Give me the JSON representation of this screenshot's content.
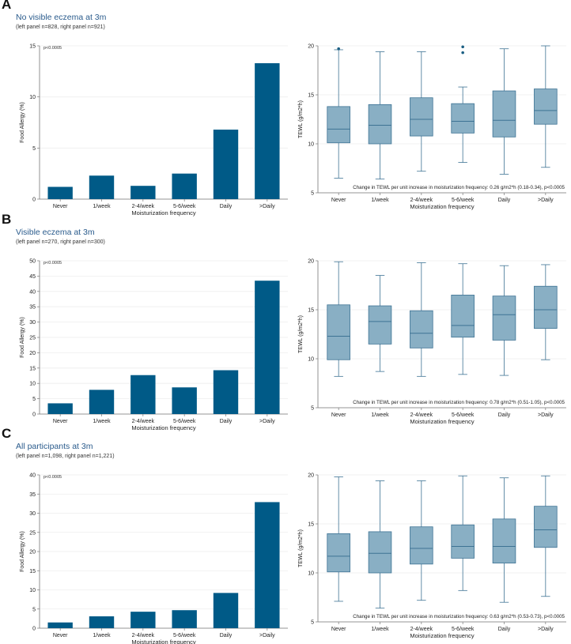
{
  "chart_data": [
    {
      "id": "A",
      "title": "No visible eczema at 3m",
      "subtitle": "(left panel n=828, right panel n=921)",
      "categories": [
        "Never",
        "1/week",
        "2-4/week",
        "5-6/week",
        "Daily",
        ">Daily"
      ],
      "xlabel": "Moisturization frequency",
      "bar": {
        "type": "bar",
        "ylabel": "Food Allergy (%)",
        "ylim": [
          0,
          15
        ],
        "yticks": [
          0,
          5,
          10,
          15
        ],
        "values": [
          1.2,
          2.3,
          1.3,
          2.5,
          6.8,
          13.3
        ],
        "pvalue": "p<0.0005",
        "color": "#005a87"
      },
      "box": {
        "type": "box",
        "ylabel": "TEWL (g/m2*h)",
        "ylim": [
          5,
          20
        ],
        "yticks": [
          5,
          10,
          15,
          20
        ],
        "boxes": [
          {
            "min": 6.5,
            "q1": 10.1,
            "median": 11.5,
            "q3": 13.8,
            "max": 19.6,
            "outliers": [
              19.7
            ]
          },
          {
            "min": 6.4,
            "q1": 10.0,
            "median": 11.9,
            "q3": 14.0,
            "max": 19.4,
            "outliers": []
          },
          {
            "min": 7.2,
            "q1": 10.8,
            "median": 12.5,
            "q3": 14.7,
            "max": 19.4,
            "outliers": []
          },
          {
            "min": 8.1,
            "q1": 11.1,
            "median": 12.3,
            "q3": 14.1,
            "max": 15.8,
            "outliers": [
              19.3,
              19.9
            ]
          },
          {
            "min": 6.9,
            "q1": 10.7,
            "median": 12.4,
            "q3": 15.4,
            "max": 19.7,
            "outliers": []
          },
          {
            "min": 7.6,
            "q1": 12.0,
            "median": 13.4,
            "q3": 15.6,
            "max": 20.0,
            "outliers": []
          }
        ],
        "annotation": "Change in TEWL per unit increase in moisturization frequency: 0.26 g/m2*h (0.18-0.34), p<0.0005",
        "color": "#89afc4",
        "edge": "#3e7394"
      }
    },
    {
      "id": "B",
      "title": "Visible eczema at 3m",
      "subtitle": "(left panel n=270, right panel n=300)",
      "categories": [
        "Never",
        "1/week",
        "2-4/week",
        "5-6/week",
        "Daily",
        ">Daily"
      ],
      "xlabel": "Moisturization frequency",
      "bar": {
        "type": "bar",
        "ylabel": "Food Allergy (%)",
        "ylim": [
          0,
          50
        ],
        "yticks": [
          0,
          5,
          10,
          15,
          20,
          25,
          30,
          35,
          40,
          45,
          50
        ],
        "values": [
          3.5,
          7.9,
          12.7,
          8.7,
          14.3,
          43.5
        ],
        "pvalue": "p<0.0005",
        "color": "#005a87"
      },
      "box": {
        "type": "box",
        "ylabel": "TEWL (g/m2*h)",
        "ylim": [
          5,
          20
        ],
        "yticks": [
          5,
          10,
          15,
          20
        ],
        "boxes": [
          {
            "min": 8.2,
            "q1": 9.9,
            "median": 12.3,
            "q3": 15.5,
            "max": 19.9,
            "outliers": []
          },
          {
            "min": 8.7,
            "q1": 11.5,
            "median": 13.8,
            "q3": 15.4,
            "max": 18.5,
            "outliers": []
          },
          {
            "min": 8.2,
            "q1": 11.1,
            "median": 12.6,
            "q3": 14.9,
            "max": 19.8,
            "outliers": []
          },
          {
            "min": 8.4,
            "q1": 12.2,
            "median": 13.4,
            "q3": 16.5,
            "max": 19.7,
            "outliers": []
          },
          {
            "min": 8.3,
            "q1": 11.9,
            "median": 14.5,
            "q3": 16.4,
            "max": 19.5,
            "outliers": []
          },
          {
            "min": 9.9,
            "q1": 13.1,
            "median": 15.0,
            "q3": 17.4,
            "max": 19.6,
            "outliers": []
          }
        ],
        "annotation": "Change in TEWL per unit increase in moisturization frequency: 0.78 g/m2*h (0.51-1.05), p<0.0005",
        "color": "#89afc4",
        "edge": "#3e7394"
      }
    },
    {
      "id": "C",
      "title": "All participants at 3m",
      "subtitle": "(left panel n=1,098, right panel n=1,221)",
      "categories": [
        "Never",
        "1/week",
        "2-4/week",
        "5-6/week",
        "Daily",
        ">Daily"
      ],
      "xlabel": "Moisturization frequency",
      "bar": {
        "type": "bar",
        "ylabel": "Food Allergy (%)",
        "ylim": [
          0,
          40
        ],
        "yticks": [
          0,
          5,
          10,
          15,
          20,
          25,
          30,
          35,
          40
        ],
        "values": [
          1.5,
          3.1,
          4.3,
          4.7,
          9.2,
          32.9
        ],
        "pvalue": "p<0.0005",
        "color": "#005a87"
      },
      "box": {
        "type": "box",
        "ylabel": "TEWL (g/m2*h)",
        "ylim": [
          5,
          20
        ],
        "yticks": [
          5,
          10,
          15,
          20
        ],
        "boxes": [
          {
            "min": 7.1,
            "q1": 10.1,
            "median": 11.7,
            "q3": 14.0,
            "max": 19.8,
            "outliers": []
          },
          {
            "min": 6.4,
            "q1": 10.0,
            "median": 12.0,
            "q3": 14.2,
            "max": 19.4,
            "outliers": []
          },
          {
            "min": 7.2,
            "q1": 10.9,
            "median": 12.5,
            "q3": 14.7,
            "max": 19.4,
            "outliers": []
          },
          {
            "min": 8.2,
            "q1": 11.5,
            "median": 12.7,
            "q3": 14.9,
            "max": 19.9,
            "outliers": []
          },
          {
            "min": 7.0,
            "q1": 11.0,
            "median": 12.7,
            "q3": 15.5,
            "max": 19.7,
            "outliers": []
          },
          {
            "min": 7.6,
            "q1": 12.6,
            "median": 14.4,
            "q3": 16.8,
            "max": 19.9,
            "outliers": []
          }
        ],
        "annotation": "Change in TEWL per unit increase in moisturization frequency: 0.63 g/m2*h (0.53-0.73), p<0.0005",
        "color": "#89afc4",
        "edge": "#3e7394"
      }
    }
  ]
}
